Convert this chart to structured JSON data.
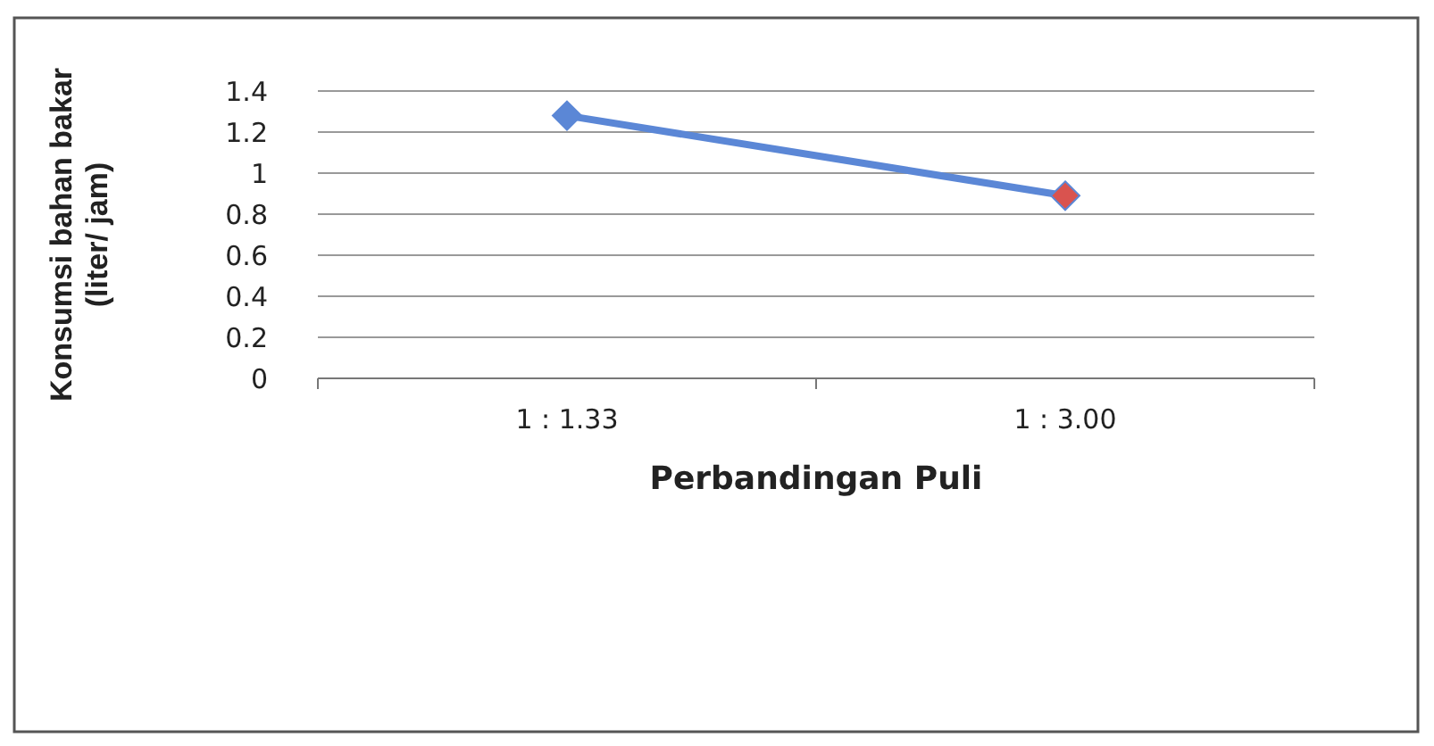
{
  "chart_data": {
    "type": "line",
    "xlabel": "Perbandingan Puli",
    "ylabel": "Konsumsi bahan bakar\n(liter/ jam)",
    "categories": [
      "1 : 1.33",
      "1 : 3.00"
    ],
    "series": [
      {
        "color": "#5b87d6",
        "colors": [
          "#5b87d6",
          "#d9534f"
        ],
        "values": [
          1.28,
          0.89
        ]
      }
    ],
    "ylim": [
      0,
      1.4
    ],
    "yticks": [
      0,
      0.2,
      0.4,
      0.6,
      0.8,
      1,
      1.2,
      1.4
    ],
    "grid": "y",
    "marker": "diamond"
  }
}
